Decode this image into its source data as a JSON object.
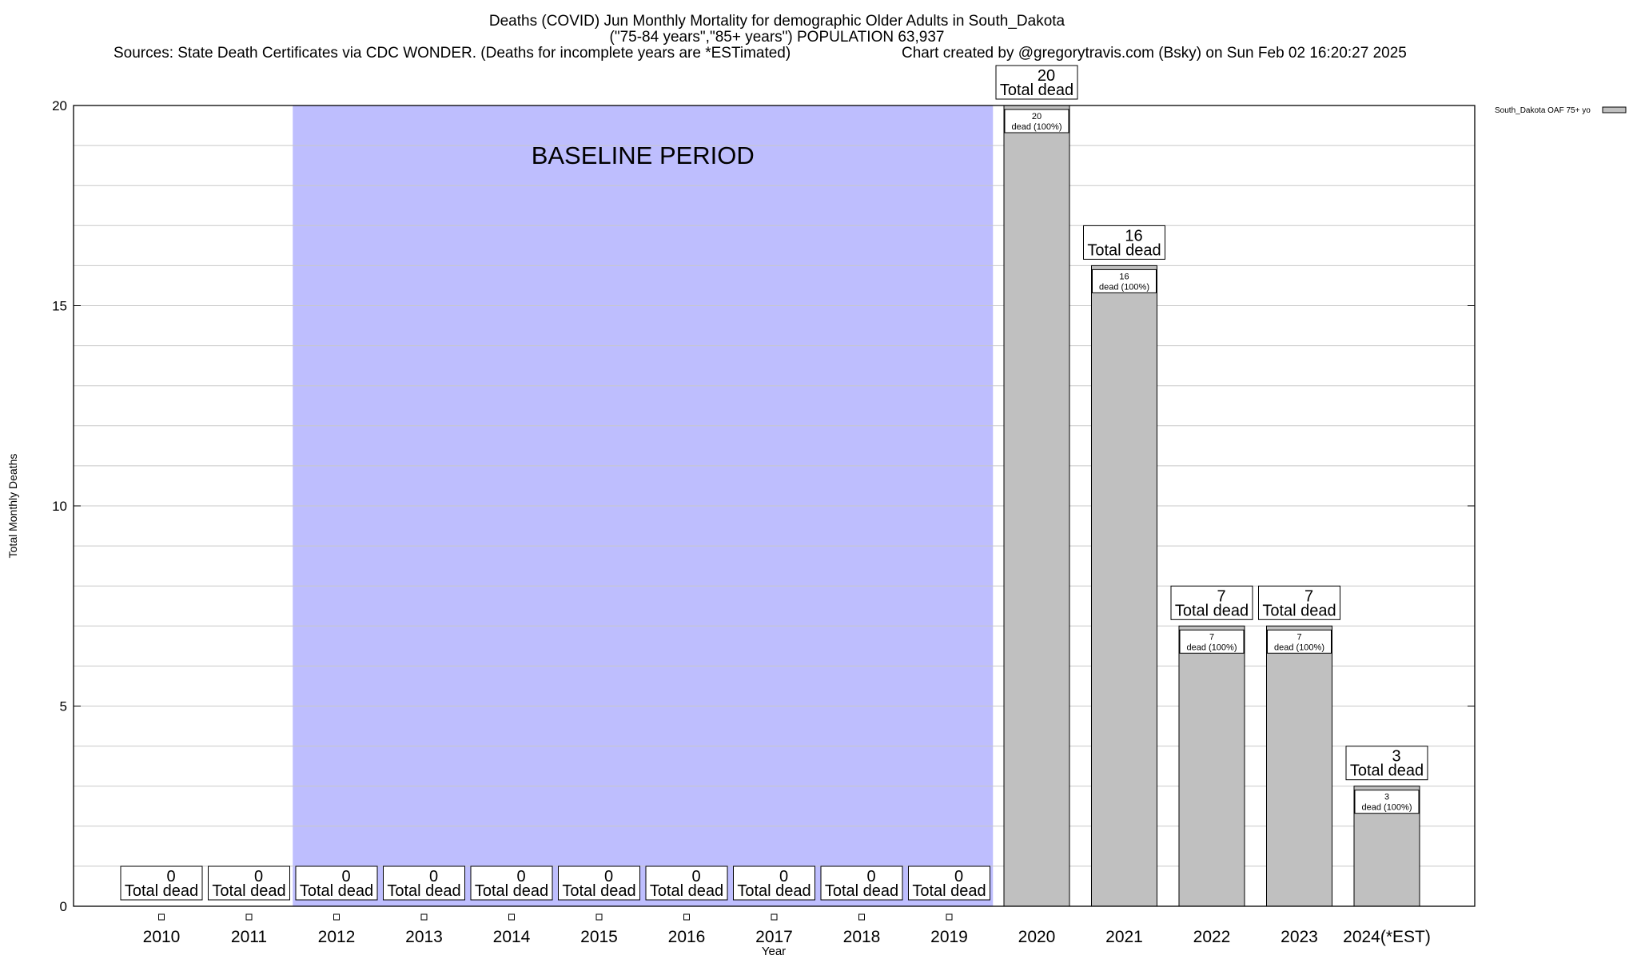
{
  "header": {
    "title_line1": "Deaths (COVID) Jun Monthly Mortality for demographic Older Adults in South_Dakota",
    "title_line2": "(\"75-84 years\",\"85+ years\") POPULATION 63,937",
    "sources": "Sources: State Death Certificates via CDC WONDER. (Deaths for incomplete years are *ESTimated)",
    "credit": "Chart created by @gregorytravis.com (Bsky) on Sun Feb 02 16:20:27 2025"
  },
  "colors": {
    "bar_fill": "#c0c0c0",
    "baseline_fill": "#bebefe",
    "grid": "#c8c8c8"
  },
  "chart_data": {
    "type": "bar",
    "title": "Deaths (COVID) Jun Monthly Mortality for demographic Older Adults in South_Dakota",
    "xlabel": "Year",
    "ylabel": "Total Monthly Deaths",
    "ylim": [
      0,
      20
    ],
    "yticks": [
      0,
      5,
      10,
      15,
      20
    ],
    "grid": true,
    "legend_position": "top-right",
    "categories": [
      "2010",
      "2011",
      "2012",
      "2013",
      "2014",
      "2015",
      "2016",
      "2017",
      "2018",
      "2019",
      "2020",
      "2021",
      "2022",
      "2023",
      "2024(*EST)"
    ],
    "series": [
      {
        "name": "South_Dakota OAF 75+ yo",
        "values": [
          0,
          0,
          0,
          0,
          0,
          0,
          0,
          0,
          0,
          0,
          20,
          16,
          7,
          7,
          3
        ]
      }
    ],
    "total_label_text": "Total dead",
    "inner_label_suffix": "dead (100%)",
    "baseline": {
      "label": "BASELINE PERIOD",
      "start": "2012",
      "end": "2019"
    }
  }
}
